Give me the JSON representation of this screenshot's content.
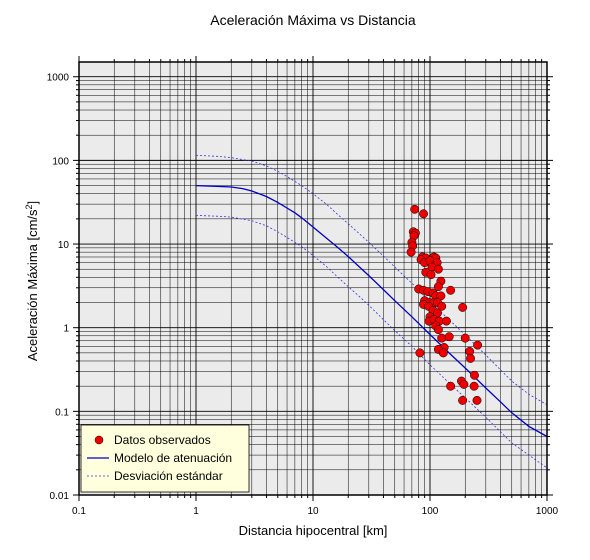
{
  "chart_data": {
    "type": "scatter",
    "title": "Aceleración Máxima vs Distancia",
    "xlabel": "Distancia hipocentral [km]",
    "ylabel_main": "Aceleración Máxima [cm/s",
    "ylabel_sup": "2",
    "ylabel_end": "]",
    "x_scale": "log",
    "y_scale": "log",
    "xlim": [
      0.1,
      1000
    ],
    "ylim": [
      0.01,
      1500
    ],
    "grid": true,
    "legend_position": "bottom-left",
    "x_ticks": [
      {
        "value": 0.1,
        "label": "0.1"
      },
      {
        "value": 1,
        "label": "1"
      },
      {
        "value": 10,
        "label": "10"
      },
      {
        "value": 100,
        "label": "100"
      },
      {
        "value": 1000,
        "label": "1000"
      }
    ],
    "y_ticks": [
      {
        "value": 0.01,
        "label": "0.01"
      },
      {
        "value": 0.1,
        "label": "0.1"
      },
      {
        "value": 1,
        "label": "1"
      },
      {
        "value": 10,
        "label": "10"
      },
      {
        "value": 100,
        "label": "100"
      },
      {
        "value": 1000,
        "label": "1000"
      }
    ],
    "colors": {
      "plot_background": "#ebebeb",
      "points": "#ee0000",
      "model": "#0000cc",
      "std_dev": "#3333dd",
      "legend_background": "#ffffdd"
    },
    "series": [
      {
        "name": "Datos observados",
        "kind": "points",
        "points": [
          [
            74,
            26
          ],
          [
            88,
            23
          ],
          [
            72,
            14
          ],
          [
            75,
            13.5
          ],
          [
            73,
            12.5
          ],
          [
            70,
            10.5
          ],
          [
            71,
            9.5
          ],
          [
            69,
            8
          ],
          [
            86,
            7
          ],
          [
            92,
            6.8
          ],
          [
            108,
            7
          ],
          [
            112,
            6.8
          ],
          [
            84,
            6.5
          ],
          [
            90,
            6
          ],
          [
            100,
            6.3
          ],
          [
            115,
            6
          ],
          [
            104,
            5.3
          ],
          [
            118,
            5
          ],
          [
            92,
            4.6
          ],
          [
            102,
            4.3
          ],
          [
            124,
            3.6
          ],
          [
            118,
            3.1
          ],
          [
            80,
            2.9
          ],
          [
            88,
            2.8
          ],
          [
            96,
            2.7
          ],
          [
            106,
            2.6
          ],
          [
            112,
            2.4
          ],
          [
            124,
            2.4
          ],
          [
            150,
            2.8
          ],
          [
            90,
            2.1
          ],
          [
            99,
            2.0
          ],
          [
            108,
            2.0
          ],
          [
            116,
            2.0
          ],
          [
            88,
            1.9
          ],
          [
            97,
            1.8
          ],
          [
            126,
            1.8
          ],
          [
            190,
            1.75
          ],
          [
            106,
            1.6
          ],
          [
            116,
            1.5
          ],
          [
            100,
            1.35
          ],
          [
            98,
            1.2
          ],
          [
            108,
            1.25
          ],
          [
            120,
            1.2
          ],
          [
            138,
            1.2
          ],
          [
            112,
            1.05
          ],
          [
            118,
            0.95
          ],
          [
            126,
            0.75
          ],
          [
            146,
            0.78
          ],
          [
            200,
            0.75
          ],
          [
            132,
            0.58
          ],
          [
            255,
            0.62
          ],
          [
            82,
            0.5
          ],
          [
            118,
            0.55
          ],
          [
            130,
            0.5
          ],
          [
            218,
            0.52
          ],
          [
            222,
            0.43
          ],
          [
            240,
            0.27
          ],
          [
            150,
            0.2
          ],
          [
            186,
            0.23
          ],
          [
            195,
            0.21
          ],
          [
            238,
            0.2
          ],
          [
            190,
            0.135
          ],
          [
            252,
            0.135
          ]
        ]
      },
      {
        "name": "Modelo de atenuación",
        "kind": "line",
        "points": [
          [
            1,
            50
          ],
          [
            1.5,
            49
          ],
          [
            2,
            48
          ],
          [
            2.5,
            46
          ],
          [
            3,
            43
          ],
          [
            4,
            37
          ],
          [
            5,
            31.5
          ],
          [
            6,
            27
          ],
          [
            7,
            23.6
          ],
          [
            8,
            20.6
          ],
          [
            10,
            16
          ],
          [
            13,
            11.8
          ],
          [
            16,
            9.3
          ],
          [
            20,
            7.1
          ],
          [
            25,
            5.3
          ],
          [
            30,
            4.2
          ],
          [
            40,
            2.85
          ],
          [
            50,
            2.1
          ],
          [
            70,
            1.35
          ],
          [
            100,
            0.83
          ],
          [
            150,
            0.48
          ],
          [
            200,
            0.33
          ],
          [
            300,
            0.19
          ],
          [
            400,
            0.13
          ],
          [
            500,
            0.096
          ],
          [
            700,
            0.066
          ],
          [
            1000,
            0.05
          ]
        ]
      },
      {
        "name": "Desviación estándar",
        "kind": "band",
        "upper": [
          [
            1,
            115
          ],
          [
            1.5,
            112
          ],
          [
            2,
            108
          ],
          [
            3,
            98
          ],
          [
            4,
            86
          ],
          [
            5,
            74
          ],
          [
            6,
            64
          ],
          [
            8,
            50
          ],
          [
            10,
            40
          ],
          [
            13,
            30
          ],
          [
            16,
            23
          ],
          [
            20,
            17.5
          ],
          [
            25,
            13.2
          ],
          [
            30,
            10.5
          ],
          [
            40,
            7.2
          ],
          [
            50,
            5.3
          ],
          [
            70,
            3.4
          ],
          [
            100,
            2.05
          ],
          [
            150,
            1.2
          ],
          [
            200,
            0.82
          ],
          [
            300,
            0.47
          ],
          [
            500,
            0.23
          ],
          [
            700,
            0.16
          ],
          [
            1000,
            0.12
          ]
        ],
        "lower": [
          [
            1,
            22
          ],
          [
            1.5,
            21.5
          ],
          [
            2,
            21
          ],
          [
            3,
            19
          ],
          [
            4,
            16.5
          ],
          [
            5,
            14
          ],
          [
            6,
            12
          ],
          [
            8,
            9.3
          ],
          [
            10,
            7.3
          ],
          [
            13,
            5.4
          ],
          [
            16,
            4.1
          ],
          [
            20,
            3.1
          ],
          [
            25,
            2.35
          ],
          [
            30,
            1.85
          ],
          [
            40,
            1.25
          ],
          [
            50,
            0.92
          ],
          [
            70,
            0.6
          ],
          [
            100,
            0.36
          ],
          [
            150,
            0.21
          ],
          [
            200,
            0.145
          ],
          [
            300,
            0.085
          ],
          [
            500,
            0.042
          ],
          [
            700,
            0.03
          ],
          [
            1000,
            0.021
          ]
        ]
      }
    ],
    "legend": [
      {
        "label": "Datos observados",
        "symbol": "point"
      },
      {
        "label": "Modelo de atenuación",
        "symbol": "solid"
      },
      {
        "label": "Desviación estándar",
        "symbol": "dashed"
      }
    ]
  }
}
